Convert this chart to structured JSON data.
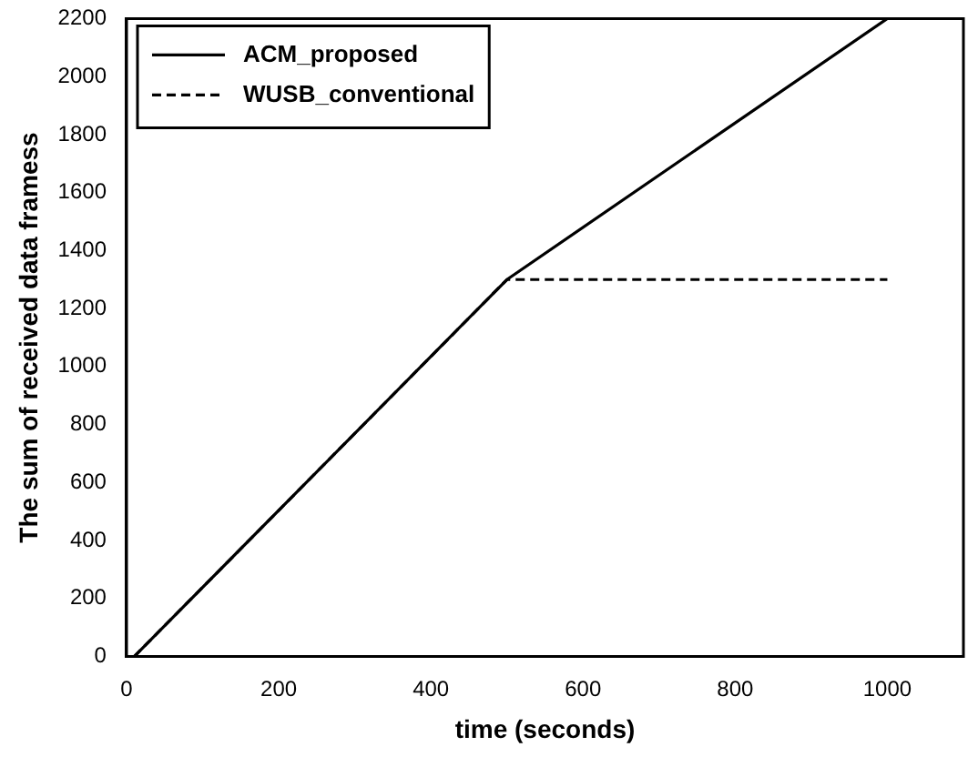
{
  "chart_data": {
    "type": "line",
    "xlabel": "time (seconds)",
    "ylabel": "The sum of received data framess",
    "xlim": [
      0,
      1100
    ],
    "xticks": [
      0,
      200,
      400,
      600,
      800,
      1000
    ],
    "ylim": [
      0,
      2200
    ],
    "yticks": [
      0,
      200,
      400,
      600,
      800,
      1000,
      1200,
      1400,
      1600,
      1800,
      2000,
      2200
    ],
    "grid": false,
    "legend": "top left",
    "marker": "none",
    "series": [
      {
        "name": "ACM_proposed",
        "color": "#000000",
        "line_style": "solid",
        "x": [
          10,
          500,
          1000
        ],
        "values": [
          0,
          1300,
          2200
        ]
      },
      {
        "name": "WUSB_conventional",
        "color": "#000000",
        "line_style": "dashed",
        "x": [
          10,
          500,
          1000
        ],
        "values": [
          0,
          1300,
          1300
        ]
      }
    ]
  }
}
